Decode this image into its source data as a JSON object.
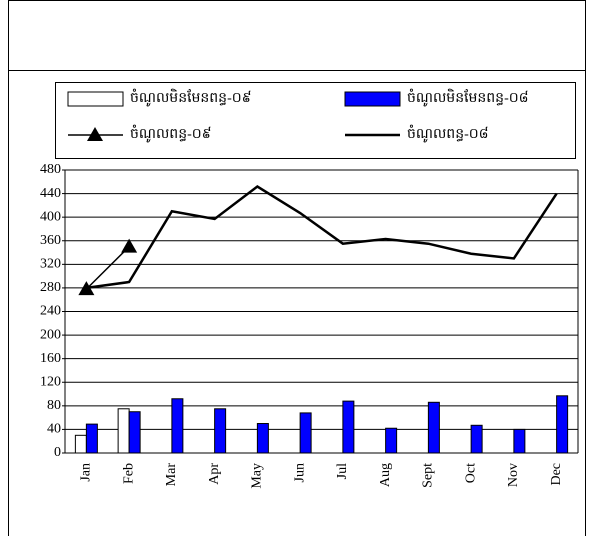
{
  "chart_data": {
    "type": "bar-line",
    "categories": [
      "Jan",
      "Feb",
      "Mar",
      "Apr",
      "May",
      "Jun",
      "Jul",
      "Aug",
      "Sept",
      "Oct",
      "Nov",
      "Dec"
    ],
    "series": [
      {
        "name": "ចំណូលមិនមែនពន្ធ-០៩",
        "kind": "bar",
        "color": "#ffffff",
        "values": [
          30,
          75,
          null,
          null,
          null,
          null,
          null,
          null,
          null,
          null,
          null,
          null
        ]
      },
      {
        "name": "ចំណូលមិនមែនពន្ធ-០៨",
        "kind": "bar",
        "color": "#0000ff",
        "values": [
          49,
          70,
          92,
          75,
          50,
          68,
          88,
          42,
          86,
          47,
          40,
          97
        ]
      },
      {
        "name": "ចំណូលពន្ធ-០៩",
        "kind": "line",
        "marker": "triangle",
        "color": "#000000",
        "values": [
          278,
          350,
          null,
          null,
          null,
          null,
          null,
          null,
          null,
          null,
          null,
          null
        ]
      },
      {
        "name": "ចំណូលពន្ធ-០៨",
        "kind": "line",
        "color": "#000000",
        "values": [
          280,
          290,
          410,
          397,
          452,
          407,
          355,
          363,
          355,
          338,
          330,
          440
        ]
      }
    ],
    "ylim": [
      0,
      480
    ],
    "yticks": [
      0,
      40,
      80,
      120,
      160,
      200,
      240,
      280,
      320,
      360,
      400,
      440,
      480
    ],
    "grid": true
  }
}
